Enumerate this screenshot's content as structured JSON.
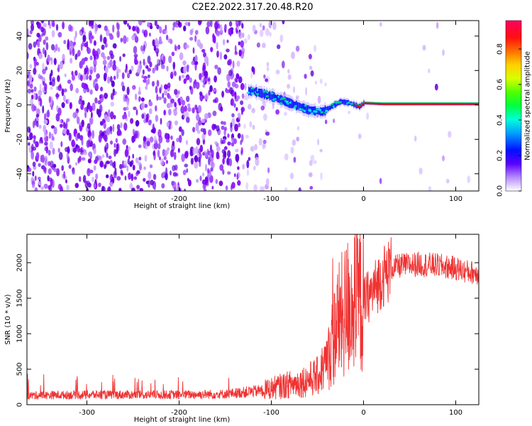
{
  "title": "C2E2.2022.317.20.48.R20",
  "chart_data": [
    {
      "type": "heatmap",
      "xlabel": "Height of straight line (km)",
      "ylabel": "Frequency (Hz)",
      "xlim": [
        -365,
        125
      ],
      "ylim": [
        -50,
        49
      ],
      "xticks": [
        -300,
        -200,
        -100,
        0,
        100
      ],
      "yticks": [
        -40,
        -20,
        0,
        20,
        40
      ],
      "grid": false,
      "colorbar": {
        "label": "Normalized spectral amplitude",
        "range": [
          0,
          0.96
        ],
        "ticks": [
          0.0,
          0.2,
          0.4,
          0.6,
          0.8
        ]
      },
      "ridge": {
        "x": [
          -120,
          -100,
          -80,
          -60,
          -45,
          -35,
          -25,
          -15,
          -5,
          0,
          20,
          50,
          100,
          125
        ],
        "y": [
          8,
          5,
          1,
          -3,
          -4,
          -1,
          2,
          1,
          -1,
          1,
          0.5,
          0.5,
          0.5,
          0.5
        ]
      }
    },
    {
      "type": "line",
      "xlabel": "Height of straight line (km)",
      "ylabel": "SNR (10 * v/v)",
      "xlim": [
        -365,
        125
      ],
      "ylim": [
        0,
        2400
      ],
      "xticks": [
        -300,
        -200,
        -100,
        0,
        100
      ],
      "yticks": [
        0,
        500,
        1000,
        1500,
        2000
      ],
      "grid": false,
      "color": "#f03232",
      "series": [
        {
          "x": [
            -365,
            -300,
            -200,
            -150,
            -110,
            -90,
            -70,
            -50,
            -40,
            -35,
            -30,
            -25,
            -20,
            -15,
            -10,
            -5,
            0,
            10,
            20,
            30,
            40,
            60,
            80,
            100,
            110,
            125
          ],
          "y": [
            130,
            140,
            140,
            150,
            200,
            260,
            310,
            400,
            600,
            800,
            1100,
            1200,
            1300,
            1450,
            1400,
            1500,
            1450,
            1600,
            1800,
            1920,
            1960,
            1980,
            1960,
            1920,
            1880,
            1850
          ]
        }
      ]
    }
  ]
}
